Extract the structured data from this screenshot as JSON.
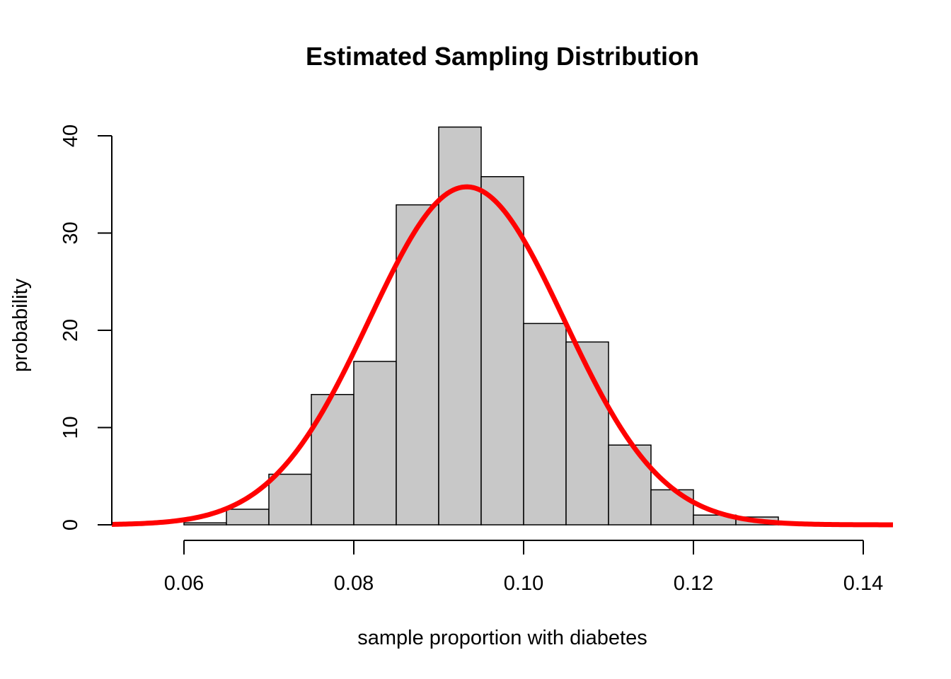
{
  "chart_data": {
    "type": "bar",
    "title": "Estimated Sampling Distribution",
    "xlabel": "sample proportion with diabetes",
    "ylabel": "probability",
    "xlim": [
      0.0515,
      0.1435
    ],
    "ylim": [
      0,
      40
    ],
    "x_ticks": [
      {
        "value": 0.06,
        "label": "0.06"
      },
      {
        "value": 0.08,
        "label": "0.08"
      },
      {
        "value": 0.1,
        "label": "0.10"
      },
      {
        "value": 0.12,
        "label": "0.12"
      },
      {
        "value": 0.14,
        "label": "0.14"
      }
    ],
    "y_ticks": [
      {
        "value": 0,
        "label": "0"
      },
      {
        "value": 10,
        "label": "10"
      },
      {
        "value": 20,
        "label": "20"
      },
      {
        "value": 30,
        "label": "30"
      },
      {
        "value": 40,
        "label": "40"
      }
    ],
    "bins": [
      {
        "start": 0.06,
        "end": 0.065,
        "value": 0.2
      },
      {
        "start": 0.065,
        "end": 0.07,
        "value": 1.6
      },
      {
        "start": 0.07,
        "end": 0.075,
        "value": 5.2
      },
      {
        "start": 0.075,
        "end": 0.08,
        "value": 13.4
      },
      {
        "start": 0.08,
        "end": 0.085,
        "value": 16.8
      },
      {
        "start": 0.085,
        "end": 0.09,
        "value": 32.9
      },
      {
        "start": 0.09,
        "end": 0.095,
        "value": 40.9
      },
      {
        "start": 0.095,
        "end": 0.1,
        "value": 35.8
      },
      {
        "start": 0.1,
        "end": 0.105,
        "value": 20.7
      },
      {
        "start": 0.105,
        "end": 0.11,
        "value": 18.8
      },
      {
        "start": 0.11,
        "end": 0.115,
        "value": 8.2
      },
      {
        "start": 0.115,
        "end": 0.12,
        "value": 3.6
      },
      {
        "start": 0.12,
        "end": 0.125,
        "value": 1.0
      },
      {
        "start": 0.125,
        "end": 0.13,
        "value": 0.8
      },
      {
        "start": 0.13,
        "end": 0.135,
        "value": 0.2
      }
    ],
    "curve": {
      "type": "normal",
      "mean": 0.0933,
      "sd": 0.01148
    },
    "colors": {
      "bar_fill": "#c8c8c8",
      "bar_stroke": "#000000",
      "curve": "#ff0000",
      "axis": "#000000"
    },
    "grid": false
  }
}
